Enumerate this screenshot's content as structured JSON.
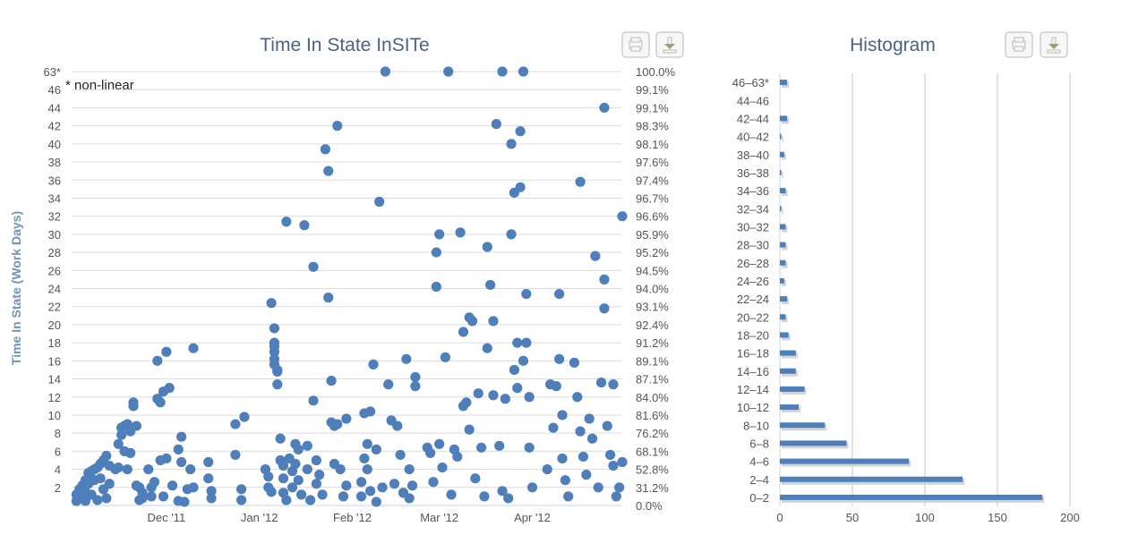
{
  "chart_data": [
    {
      "type": "scatter",
      "title": "Time In State InSITe",
      "ylabel": "Time In State (Work Days)",
      "note": "* non-linear",
      "y_ticks": [
        "2",
        "4",
        "6",
        "8",
        "10",
        "12",
        "14",
        "16",
        "18",
        "20",
        "22",
        "24",
        "26",
        "28",
        "30",
        "32",
        "34",
        "36",
        "38",
        "40",
        "42",
        "44",
        "46",
        "63*"
      ],
      "y_ticks_right": [
        "0.0%",
        "31.2%",
        "52.8%",
        "68.1%",
        "76.2%",
        "81.6%",
        "84.0%",
        "87.1%",
        "89.1%",
        "91.2%",
        "92.4%",
        "93.1%",
        "94.0%",
        "94.5%",
        "95.2%",
        "95.9%",
        "96.6%",
        "96.7%",
        "97.4%",
        "97.6%",
        "98.1%",
        "98.3%",
        "99.1%",
        "99.1%",
        "100.0%"
      ],
      "x_ticks": [
        "Dec '11",
        "Jan '12",
        "Feb '12",
        "Mar '12",
        "Apr '12"
      ],
      "color": "#4f7fba",
      "points": [
        [
          1,
          0.5
        ],
        [
          1,
          1.2
        ],
        [
          2,
          0.8
        ],
        [
          2,
          1.8
        ],
        [
          3,
          2.2
        ],
        [
          3,
          1
        ],
        [
          4,
          2.8
        ],
        [
          4,
          1.5
        ],
        [
          4,
          0.5
        ],
        [
          5,
          3.6
        ],
        [
          5,
          2.4
        ],
        [
          6,
          3.8
        ],
        [
          6,
          1.2
        ],
        [
          7,
          4
        ],
        [
          7,
          2.8
        ],
        [
          8,
          4.2
        ],
        [
          8,
          0.6
        ],
        [
          9,
          4.6
        ],
        [
          9,
          3
        ],
        [
          10,
          5
        ],
        [
          10,
          1.8
        ],
        [
          11,
          5.5
        ],
        [
          11,
          0.8
        ],
        [
          12,
          4.4
        ],
        [
          12,
          2.4
        ],
        [
          14,
          4
        ],
        [
          15,
          6.8
        ],
        [
          15,
          4.2
        ],
        [
          16,
          7.8
        ],
        [
          16,
          8.6
        ],
        [
          17,
          8.8
        ],
        [
          17,
          6
        ],
        [
          18,
          9
        ],
        [
          18,
          4
        ],
        [
          19,
          8.2
        ],
        [
          19,
          5.8
        ],
        [
          20,
          11.4
        ],
        [
          20,
          11
        ],
        [
          21,
          8.8
        ],
        [
          21,
          2.2
        ],
        [
          22,
          2
        ],
        [
          22,
          0.6
        ],
        [
          23,
          0.8
        ],
        [
          23,
          1.4
        ],
        [
          25,
          4
        ],
        [
          26,
          2
        ],
        [
          26,
          1
        ],
        [
          27,
          2.6
        ],
        [
          28,
          16
        ],
        [
          28,
          11.8
        ],
        [
          29,
          11.4
        ],
        [
          29,
          5
        ],
        [
          30,
          12.6
        ],
        [
          30,
          1
        ],
        [
          31,
          17
        ],
        [
          31,
          5.2
        ],
        [
          32,
          13
        ],
        [
          33,
          2.2
        ],
        [
          35,
          0.5
        ],
        [
          35,
          6.2
        ],
        [
          36,
          7.6
        ],
        [
          36,
          4.8
        ],
        [
          37,
          0.4
        ],
        [
          38,
          1.8
        ],
        [
          39,
          4
        ],
        [
          40,
          17.4
        ],
        [
          40,
          2
        ],
        [
          45,
          4.8
        ],
        [
          45,
          3
        ],
        [
          46,
          1.6
        ],
        [
          46,
          0.8
        ],
        [
          54,
          9
        ],
        [
          54,
          5.6
        ],
        [
          56,
          1.8
        ],
        [
          56,
          0.6
        ],
        [
          57,
          9.8
        ],
        [
          64,
          4
        ],
        [
          65,
          3.2
        ],
        [
          65,
          2
        ],
        [
          66,
          1.5
        ],
        [
          66,
          22.4
        ],
        [
          67,
          19.6
        ],
        [
          67,
          18
        ],
        [
          67,
          17.6
        ],
        [
          67,
          17
        ],
        [
          67,
          16.2
        ],
        [
          67,
          15.6
        ],
        [
          68,
          15
        ],
        [
          68,
          14.8
        ],
        [
          68,
          13.4
        ],
        [
          69,
          7.4
        ],
        [
          69,
          5
        ],
        [
          70,
          4.4
        ],
        [
          70,
          3
        ],
        [
          70,
          1.4
        ],
        [
          71,
          0.6
        ],
        [
          71,
          31.4
        ],
        [
          72,
          5.2
        ],
        [
          73,
          3.8
        ],
        [
          73,
          2
        ],
        [
          74,
          6.8
        ],
        [
          74,
          4.6
        ],
        [
          75,
          6.2
        ],
        [
          75,
          2.8
        ],
        [
          76,
          1.2
        ],
        [
          77,
          31
        ],
        [
          78,
          6.6
        ],
        [
          78,
          4
        ],
        [
          79,
          0.6
        ],
        [
          80,
          26.4
        ],
        [
          80,
          11.6
        ],
        [
          81,
          5
        ],
        [
          81,
          2.4
        ],
        [
          82,
          3.4
        ],
        [
          83,
          1.2
        ],
        [
          84,
          39.4
        ],
        [
          85,
          37
        ],
        [
          85,
          23
        ],
        [
          86,
          13.8
        ],
        [
          86,
          9.2
        ],
        [
          87,
          8.8
        ],
        [
          87,
          4.6
        ],
        [
          88,
          42
        ],
        [
          88,
          9
        ],
        [
          89,
          4
        ],
        [
          90,
          1
        ],
        [
          91,
          9.6
        ],
        [
          91,
          2.2
        ],
        [
          96,
          2.6
        ],
        [
          96,
          1
        ],
        [
          97,
          10.2
        ],
        [
          97,
          5.2
        ],
        [
          98,
          6.8
        ],
        [
          98,
          4
        ],
        [
          99,
          10.4
        ],
        [
          99,
          1.6
        ],
        [
          100,
          15.6
        ],
        [
          101,
          6.2
        ],
        [
          101,
          0.4
        ],
        [
          102,
          33.6
        ],
        [
          103,
          2
        ],
        [
          104,
          63
        ],
        [
          105,
          13.4
        ],
        [
          106,
          9.4
        ],
        [
          107,
          2.4
        ],
        [
          108,
          8.8
        ],
        [
          109,
          5.6
        ],
        [
          110,
          1.4
        ],
        [
          111,
          16.2
        ],
        [
          112,
          4
        ],
        [
          112,
          0.8
        ],
        [
          113,
          2.2
        ],
        [
          114,
          14.2
        ],
        [
          114,
          13.2
        ],
        [
          118,
          6.4
        ],
        [
          119,
          5.8
        ],
        [
          120,
          2.6
        ],
        [
          121,
          28
        ],
        [
          121,
          24.2
        ],
        [
          122,
          30
        ],
        [
          122,
          6.8
        ],
        [
          123,
          4.2
        ],
        [
          124,
          16.4
        ],
        [
          125,
          63
        ],
        [
          126,
          1.2
        ],
        [
          127,
          6.2
        ],
        [
          128,
          5.4
        ],
        [
          129,
          30.2
        ],
        [
          130,
          19.2
        ],
        [
          130,
          11
        ],
        [
          131,
          11.4
        ],
        [
          132,
          20.8
        ],
        [
          132,
          8.4
        ],
        [
          133,
          20.4
        ],
        [
          134,
          3
        ],
        [
          135,
          12.4
        ],
        [
          136,
          6.4
        ],
        [
          137,
          1
        ],
        [
          138,
          17.4
        ],
        [
          138,
          28.6
        ],
        [
          139,
          24.4
        ],
        [
          140,
          20.4
        ],
        [
          140,
          12.2
        ],
        [
          141,
          42.2
        ],
        [
          142,
          6.6
        ],
        [
          143,
          63
        ],
        [
          143,
          1.6
        ],
        [
          144,
          11.8
        ],
        [
          145,
          0.8
        ],
        [
          146,
          30
        ],
        [
          146,
          40
        ],
        [
          147,
          34.6
        ],
        [
          147,
          15
        ],
        [
          148,
          18
        ],
        [
          148,
          13
        ],
        [
          149,
          35.2
        ],
        [
          149,
          41.4
        ],
        [
          150,
          63
        ],
        [
          150,
          16
        ],
        [
          151,
          23.4
        ],
        [
          151,
          18
        ],
        [
          152,
          12
        ],
        [
          152,
          6.4
        ],
        [
          153,
          2
        ],
        [
          158,
          4
        ],
        [
          159,
          13.4
        ],
        [
          160,
          8.6
        ],
        [
          161,
          13.2
        ],
        [
          162,
          23.4
        ],
        [
          162,
          16.2
        ],
        [
          163,
          10
        ],
        [
          163,
          5.2
        ],
        [
          164,
          2.8
        ],
        [
          165,
          1
        ],
        [
          167,
          15.8
        ],
        [
          168,
          12
        ],
        [
          169,
          35.8
        ],
        [
          169,
          8.2
        ],
        [
          170,
          5.4
        ],
        [
          171,
          3.4
        ],
        [
          172,
          9.6
        ],
        [
          173,
          7.4
        ],
        [
          174,
          27.6
        ],
        [
          175,
          2
        ],
        [
          176,
          13.6
        ],
        [
          177,
          44
        ],
        [
          177,
          25
        ],
        [
          177,
          21.8
        ],
        [
          178,
          8.8
        ],
        [
          179,
          5.6
        ],
        [
          180,
          4.4
        ],
        [
          180,
          13.4
        ],
        [
          181,
          1
        ],
        [
          182,
          2
        ],
        [
          183,
          32
        ],
        [
          183,
          4.8
        ]
      ]
    },
    {
      "type": "bar",
      "title": "Histogram",
      "orientation": "horizontal",
      "categories": [
        "46–63*",
        "44–46",
        "42–44",
        "40–42",
        "38–40",
        "36–38",
        "34–36",
        "32–34",
        "30–32",
        "28–30",
        "26–28",
        "24–26",
        "22–24",
        "20–22",
        "18–20",
        "16–18",
        "14–16",
        "12–14",
        "10–12",
        "8–10",
        "6–8",
        "4–6",
        "2–4",
        "0–2"
      ],
      "values": [
        5,
        0,
        5,
        1,
        3,
        1,
        4,
        1,
        4,
        4,
        4,
        3,
        5,
        4,
        6,
        11,
        11,
        17,
        13,
        31,
        46,
        89,
        126,
        181
      ],
      "x_ticks": [
        "0",
        "50",
        "100",
        "150",
        "200"
      ],
      "xlim": [
        0,
        200
      ],
      "color": "#4f7fba"
    }
  ],
  "buttons": {
    "print_icon": "print-icon",
    "download_icon": "download-icon"
  }
}
